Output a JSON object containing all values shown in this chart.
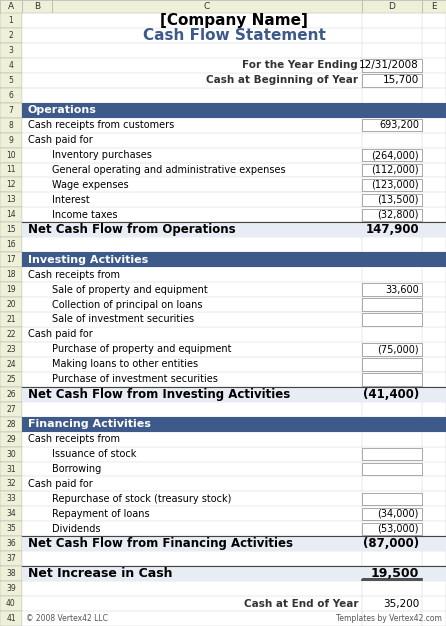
{
  "title": "[Company Name]",
  "subtitle": "Cash Flow Statement",
  "bg_color": "#FFFFFF",
  "header_bg": "#3D5A8A",
  "header_text_color": "#FFFFFF",
  "col_header_bg": "#EEF0D8",
  "col_header_text": "#333333",
  "sheet_bg": "#E8EBD0",
  "net_row_bg": "#E8EDF5",
  "title_color": "#000000",
  "subtitle_color": "#3D5A8A",
  "col_letters": [
    "A",
    "B",
    "C",
    "D",
    "E"
  ],
  "row_count": 41,
  "rows": [
    {
      "row": 1,
      "type": "title",
      "text": "[Company Name]"
    },
    {
      "row": 2,
      "type": "subtitle",
      "text": "Cash Flow Statement"
    },
    {
      "row": 3,
      "type": "empty"
    },
    {
      "row": 4,
      "type": "info",
      "label": "For the Year Ending",
      "value": "12/31/2008"
    },
    {
      "row": 5,
      "type": "info",
      "label": "Cash at Beginning of Year",
      "value": "15,700"
    },
    {
      "row": 6,
      "type": "empty"
    },
    {
      "row": 7,
      "type": "section_header",
      "text": "Operations"
    },
    {
      "row": 8,
      "type": "data",
      "label": "Cash receipts from customers",
      "value": "693,200",
      "indent": 0,
      "boxed": true
    },
    {
      "row": 9,
      "type": "data",
      "label": "Cash paid for",
      "value": "",
      "indent": 0,
      "boxed": false
    },
    {
      "row": 10,
      "type": "data",
      "label": "Inventory purchases",
      "value": "(264,000)",
      "indent": 2,
      "boxed": true
    },
    {
      "row": 11,
      "type": "data",
      "label": "General operating and administrative expenses",
      "value": "(112,000)",
      "indent": 2,
      "boxed": true
    },
    {
      "row": 12,
      "type": "data",
      "label": "Wage expenses",
      "value": "(123,000)",
      "indent": 2,
      "boxed": true
    },
    {
      "row": 13,
      "type": "data",
      "label": "Interest",
      "value": "(13,500)",
      "indent": 2,
      "boxed": true
    },
    {
      "row": 14,
      "type": "data",
      "label": "Income taxes",
      "value": "(32,800)",
      "indent": 2,
      "boxed": true
    },
    {
      "row": 15,
      "type": "net",
      "label": "Net Cash Flow from Operations",
      "value": "147,900"
    },
    {
      "row": 16,
      "type": "empty"
    },
    {
      "row": 17,
      "type": "section_header",
      "text": "Investing Activities"
    },
    {
      "row": 18,
      "type": "data",
      "label": "Cash receipts from",
      "value": "",
      "indent": 0,
      "boxed": false
    },
    {
      "row": 19,
      "type": "data",
      "label": "Sale of property and equipment",
      "value": "33,600",
      "indent": 2,
      "boxed": true
    },
    {
      "row": 20,
      "type": "data",
      "label": "Collection of principal on loans",
      "value": "",
      "indent": 2,
      "boxed": true
    },
    {
      "row": 21,
      "type": "data",
      "label": "Sale of investment securities",
      "value": "",
      "indent": 2,
      "boxed": true
    },
    {
      "row": 22,
      "type": "data",
      "label": "Cash paid for",
      "value": "",
      "indent": 0,
      "boxed": false
    },
    {
      "row": 23,
      "type": "data",
      "label": "Purchase of property and equipment",
      "value": "(75,000)",
      "indent": 2,
      "boxed": true
    },
    {
      "row": 24,
      "type": "data",
      "label": "Making loans to other entities",
      "value": "",
      "indent": 2,
      "boxed": true
    },
    {
      "row": 25,
      "type": "data",
      "label": "Purchase of investment securities",
      "value": "",
      "indent": 2,
      "boxed": true
    },
    {
      "row": 26,
      "type": "net",
      "label": "Net Cash Flow from Investing Activities",
      "value": "(41,400)"
    },
    {
      "row": 27,
      "type": "empty"
    },
    {
      "row": 28,
      "type": "section_header",
      "text": "Financing Activities"
    },
    {
      "row": 29,
      "type": "data",
      "label": "Cash receipts from",
      "value": "",
      "indent": 0,
      "boxed": false
    },
    {
      "row": 30,
      "type": "data",
      "label": "Issuance of stock",
      "value": "",
      "indent": 2,
      "boxed": true
    },
    {
      "row": 31,
      "type": "data",
      "label": "Borrowing",
      "value": "",
      "indent": 2,
      "boxed": true
    },
    {
      "row": 32,
      "type": "data",
      "label": "Cash paid for",
      "value": "",
      "indent": 0,
      "boxed": false
    },
    {
      "row": 33,
      "type": "data",
      "label": "Repurchase of stock (treasury stock)",
      "value": "",
      "indent": 2,
      "boxed": true
    },
    {
      "row": 34,
      "type": "data",
      "label": "Repayment of loans",
      "value": "(34,000)",
      "indent": 2,
      "boxed": true
    },
    {
      "row": 35,
      "type": "data",
      "label": "Dividends",
      "value": "(53,000)",
      "indent": 2,
      "boxed": true
    },
    {
      "row": 36,
      "type": "net",
      "label": "Net Cash Flow from Financing Activities",
      "value": "(87,000)"
    },
    {
      "row": 37,
      "type": "empty"
    },
    {
      "row": 38,
      "type": "net_increase",
      "label": "Net Increase in Cash",
      "value": "19,500"
    },
    {
      "row": 39,
      "type": "empty"
    },
    {
      "row": 40,
      "type": "footer_data",
      "label": "Cash at End of Year",
      "value": "35,200"
    },
    {
      "row": 41,
      "type": "copyright",
      "left": "© 2008 Vertex42 LLC",
      "right": "Templates by Vertex42.com"
    }
  ]
}
